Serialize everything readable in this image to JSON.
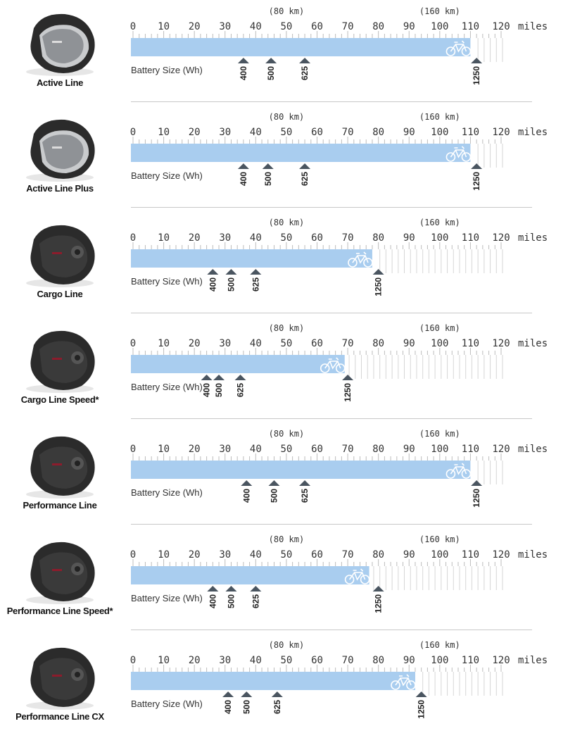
{
  "chart_data": [
    {
      "type": "bar",
      "motor": "Active Line",
      "range_miles": 110,
      "batteries": [
        {
          "label": "400",
          "miles": 36
        },
        {
          "label": "500",
          "miles": 45
        },
        {
          "label": "625",
          "miles": 56
        },
        {
          "label": "1250",
          "miles": 112
        }
      ],
      "battery_axis_label": "Battery Size (Wh)",
      "x_ticks": [
        0,
        10,
        20,
        30,
        40,
        50,
        60,
        70,
        80,
        90,
        100,
        110,
        120
      ],
      "x_unit": "miles",
      "km_markers": [
        {
          "label": "(80 km)",
          "miles": 50
        },
        {
          "label": "(160 km)",
          "miles": 100
        }
      ],
      "xlim": [
        0,
        120
      ]
    },
    {
      "type": "bar",
      "motor": "Active Line Plus",
      "range_miles": 110,
      "batteries": [
        {
          "label": "400",
          "miles": 36
        },
        {
          "label": "500",
          "miles": 44
        },
        {
          "label": "625",
          "miles": 56
        },
        {
          "label": "1250",
          "miles": 112
        }
      ],
      "battery_axis_label": "Battery Size (Wh)",
      "x_ticks": [
        0,
        10,
        20,
        30,
        40,
        50,
        60,
        70,
        80,
        90,
        100,
        110,
        120
      ],
      "x_unit": "miles",
      "km_markers": [
        {
          "label": "(80 km)",
          "miles": 50
        },
        {
          "label": "(160 km)",
          "miles": 100
        }
      ],
      "xlim": [
        0,
        120
      ]
    },
    {
      "type": "bar",
      "motor": "Cargo Line",
      "range_miles": 78,
      "batteries": [
        {
          "label": "400",
          "miles": 26
        },
        {
          "label": "500",
          "miles": 32
        },
        {
          "label": "625",
          "miles": 40
        },
        {
          "label": "1250",
          "miles": 80
        }
      ],
      "battery_axis_label": "Battery Size (Wh)",
      "x_ticks": [
        0,
        10,
        20,
        30,
        40,
        50,
        60,
        70,
        80,
        90,
        100,
        110,
        120
      ],
      "x_unit": "miles",
      "km_markers": [
        {
          "label": "(80 km)",
          "miles": 50
        },
        {
          "label": "(160 km)",
          "miles": 100
        }
      ],
      "xlim": [
        0,
        120
      ]
    },
    {
      "type": "bar",
      "motor": "Cargo Line Speed*",
      "range_miles": 69,
      "batteries": [
        {
          "label": "400",
          "miles": 24
        },
        {
          "label": "500",
          "miles": 28
        },
        {
          "label": "625",
          "miles": 35
        },
        {
          "label": "1250",
          "miles": 70
        }
      ],
      "battery_axis_label": "Battery Size (Wh)",
      "x_ticks": [
        0,
        10,
        20,
        30,
        40,
        50,
        60,
        70,
        80,
        90,
        100,
        110,
        120
      ],
      "x_unit": "miles",
      "km_markers": [
        {
          "label": "(80 km)",
          "miles": 50
        },
        {
          "label": "(160 km)",
          "miles": 100
        }
      ],
      "xlim": [
        0,
        120
      ]
    },
    {
      "type": "bar",
      "motor": "Performance Line",
      "range_miles": 110,
      "batteries": [
        {
          "label": "400",
          "miles": 37
        },
        {
          "label": "500",
          "miles": 46
        },
        {
          "label": "625",
          "miles": 56
        },
        {
          "label": "1250",
          "miles": 112
        }
      ],
      "battery_axis_label": "Battery Size (Wh)",
      "x_ticks": [
        0,
        10,
        20,
        30,
        40,
        50,
        60,
        70,
        80,
        90,
        100,
        110,
        120
      ],
      "x_unit": "miles",
      "km_markers": [
        {
          "label": "(80 km)",
          "miles": 50
        },
        {
          "label": "(160 km)",
          "miles": 100
        }
      ],
      "xlim": [
        0,
        120
      ]
    },
    {
      "type": "bar",
      "motor": "Performance Line Speed*",
      "range_miles": 77,
      "batteries": [
        {
          "label": "400",
          "miles": 26
        },
        {
          "label": "500",
          "miles": 32
        },
        {
          "label": "625",
          "miles": 40
        },
        {
          "label": "1250",
          "miles": 80
        }
      ],
      "battery_axis_label": "Battery Size (Wh)",
      "x_ticks": [
        0,
        10,
        20,
        30,
        40,
        50,
        60,
        70,
        80,
        90,
        100,
        110,
        120
      ],
      "x_unit": "miles",
      "km_markers": [
        {
          "label": "(80 km)",
          "miles": 50
        },
        {
          "label": "(160 km)",
          "miles": 100
        }
      ],
      "xlim": [
        0,
        120
      ]
    },
    {
      "type": "bar",
      "motor": "Performance Line CX",
      "range_miles": 92,
      "batteries": [
        {
          "label": "400",
          "miles": 31
        },
        {
          "label": "500",
          "miles": 37
        },
        {
          "label": "625",
          "miles": 47
        },
        {
          "label": "1250",
          "miles": 94
        }
      ],
      "battery_axis_label": "Battery Size (Wh)",
      "x_ticks": [
        0,
        10,
        20,
        30,
        40,
        50,
        60,
        70,
        80,
        90,
        100,
        110,
        120
      ],
      "x_unit": "miles",
      "km_markers": [
        {
          "label": "(80 km)",
          "miles": 50
        },
        {
          "label": "(160 km)",
          "miles": 100
        }
      ],
      "xlim": [
        0,
        120
      ]
    }
  ],
  "colors": {
    "bar": "#a9cdef",
    "marker": "#4a5560",
    "tick": "#bcbcbc",
    "text": "#333333"
  },
  "icons": {
    "bike": "bike-icon",
    "motor": "motor-icon"
  }
}
